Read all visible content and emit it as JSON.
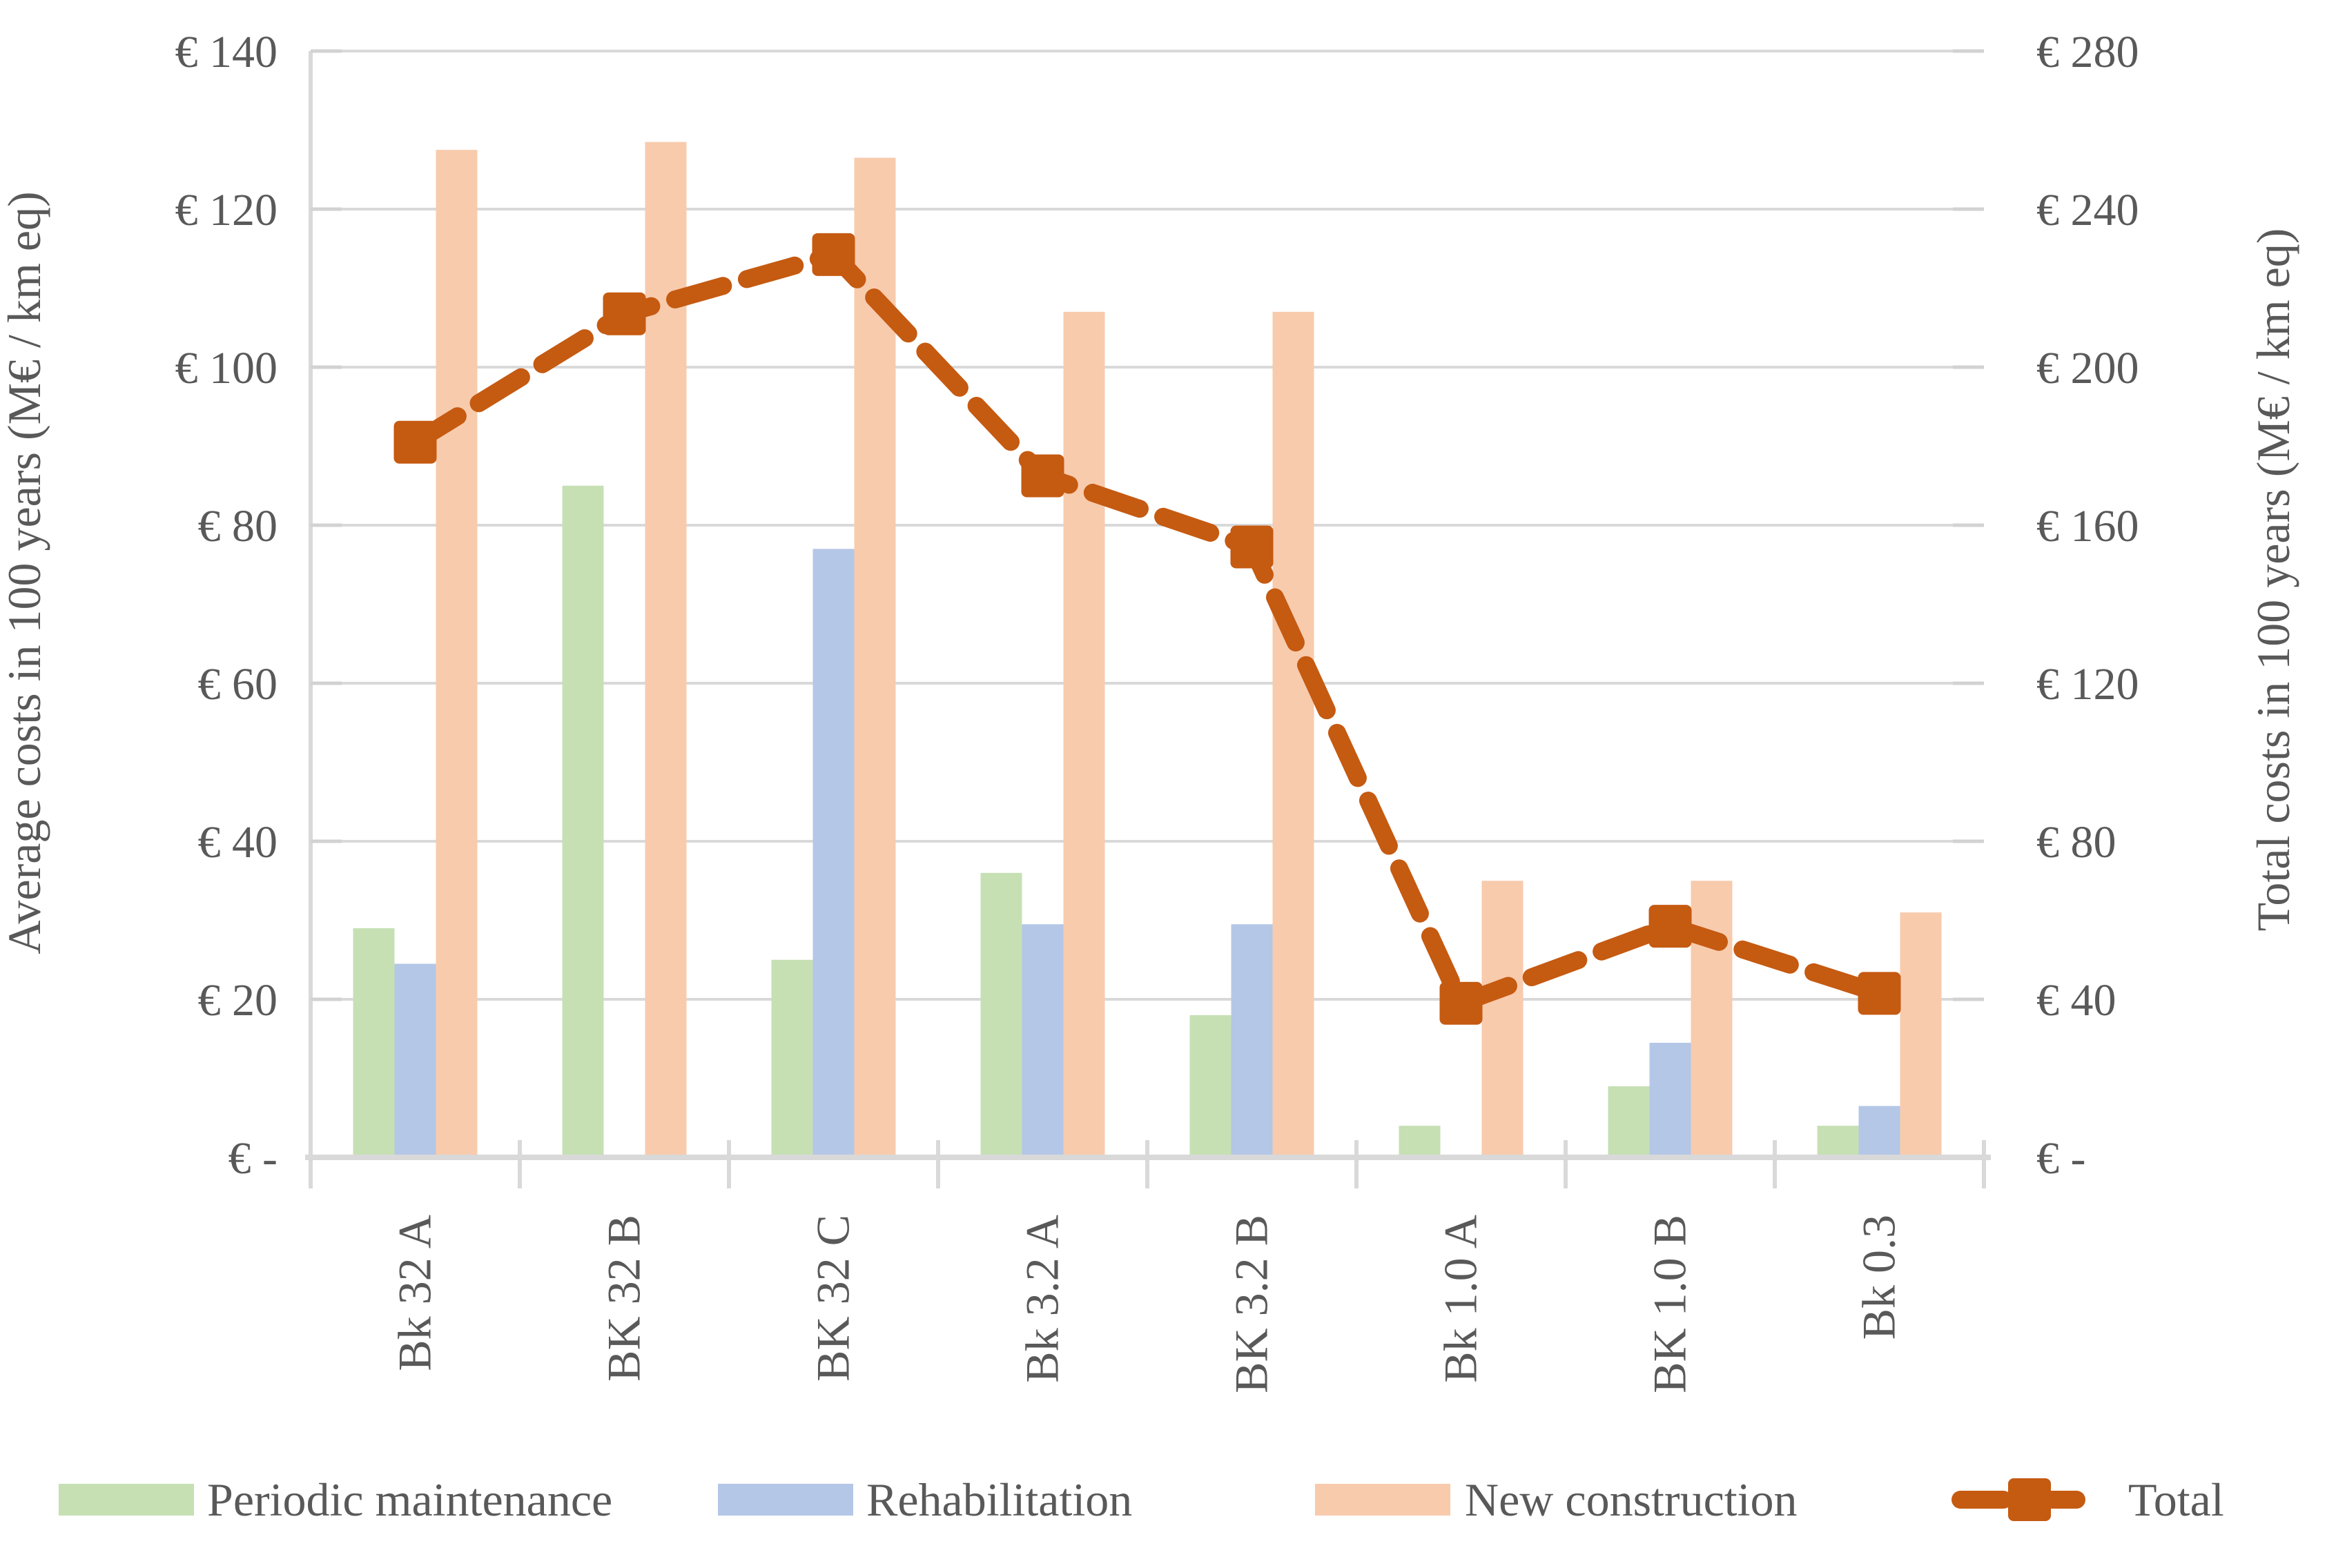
{
  "chart_data": {
    "type": "bar+line",
    "categories": [
      "Bk 32 A",
      "BK 32 B",
      "BK 32 C",
      "Bk 3.2 A",
      "BK 3.2 B",
      "Bk 1.0 A",
      "BK 1.0 B",
      "Bk 0.3"
    ],
    "series": [
      {
        "name": "Periodic maintenance",
        "type": "bar",
        "axis": "left",
        "color": "#c6e0b4",
        "values": [
          29,
          85,
          25,
          36,
          18,
          4,
          9,
          4
        ]
      },
      {
        "name": "Rehabilitation",
        "type": "bar",
        "axis": "left",
        "color": "#b4c7e7",
        "values": [
          24.5,
          0,
          77,
          29.5,
          29.5,
          0,
          14.5,
          6.5
        ]
      },
      {
        "name": "New construction",
        "type": "bar",
        "axis": "left",
        "color": "#f8cbad",
        "values": [
          127.5,
          128.5,
          126.5,
          107,
          107,
          35,
          35,
          31
        ]
      },
      {
        "name": "Total",
        "type": "line",
        "axis": "right",
        "color": "#c55a11",
        "dashed": true,
        "marker": "square",
        "values": [
          181,
          213.5,
          228.5,
          172.5,
          154.5,
          39,
          58.5,
          41.5
        ]
      }
    ],
    "left_axis": {
      "title": "Average costs in 100 years (M€ / km eq)",
      "min": 0,
      "max": 140,
      "step": 20,
      "tick_labels": [
        "€ -",
        "€ 20",
        "€ 40",
        "€ 60",
        "€ 80",
        "€ 100",
        "€ 120",
        "€ 140"
      ]
    },
    "right_axis": {
      "title": "Total costs in 100 years (M€ / km eq)",
      "min": 0,
      "max": 280,
      "step": 40,
      "tick_labels": [
        "€ -",
        "€ 40",
        "€ 80",
        "€ 120",
        "€ 160",
        "€ 200",
        "€ 240",
        "€ 280"
      ]
    },
    "grid": true,
    "legend_position": "bottom",
    "colors": {
      "grid": "#d9d9d9",
      "axis": "#d9d9d9",
      "text": "#595959",
      "background": "#ffffff"
    }
  }
}
